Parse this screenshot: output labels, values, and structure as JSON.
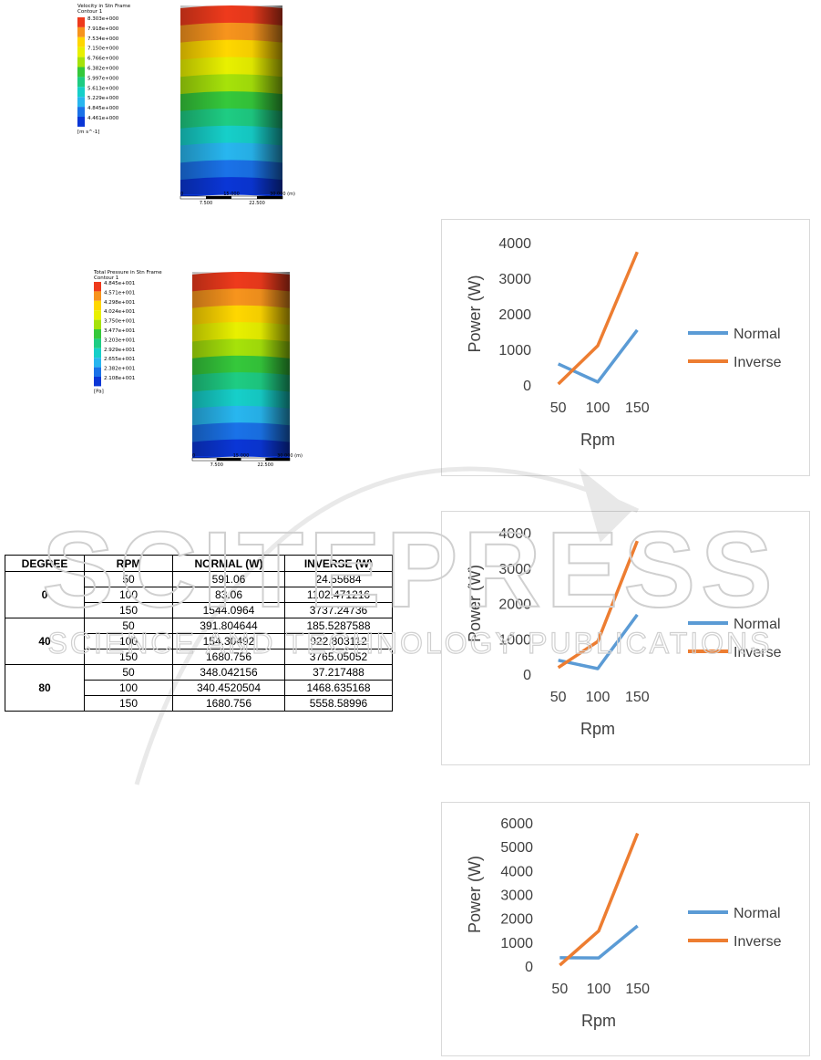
{
  "velocity_contour": {
    "title": "Velocity in Stn Frame",
    "subtitle": "Contour 1",
    "levels": [
      "8.303e+000",
      "7.918e+000",
      "7.534e+000",
      "7.150e+000",
      "6.766e+000",
      "6.382e+000",
      "5.997e+000",
      "5.613e+000",
      "5.229e+000",
      "4.845e+000",
      "4.461e+000"
    ],
    "unit": "[m s^-1]",
    "scale_ticks": [
      "0",
      "15.000",
      "30.000 (m)"
    ],
    "scale_sub_ticks": [
      "7.500",
      "22.500"
    ],
    "colors": [
      "#ee3a1c",
      "#f7941d",
      "#ffd700",
      "#e8f000",
      "#a6e20a",
      "#35c83b",
      "#1ecc83",
      "#16cfc9",
      "#28b6ef",
      "#1a72e8",
      "#0a36d6"
    ]
  },
  "pressure_contour": {
    "title": "Total Pressure in Stn Frame",
    "subtitle": "Contour 1",
    "levels": [
      "4.845e+001",
      "4.571e+001",
      "4.298e+001",
      "4.024e+001",
      "3.750e+001",
      "3.477e+001",
      "3.203e+001",
      "2.929e+001",
      "2.655e+001",
      "2.382e+001",
      "2.108e+001"
    ],
    "unit": "[Pa]",
    "scale_ticks": [
      "0",
      "15.000",
      "30.000 (m)"
    ],
    "scale_sub_ticks": [
      "7.500",
      "22.500"
    ],
    "colors": [
      "#ee3a1c",
      "#f7941d",
      "#ffd700",
      "#e8f000",
      "#a6e20a",
      "#35c83b",
      "#1ecc83",
      "#16cfc9",
      "#28b6ef",
      "#1a72e8",
      "#0a36d6"
    ]
  },
  "table": {
    "headers": [
      "DEGREE",
      "RPM",
      "NORMAL (W)",
      "INVERSE (W)"
    ],
    "groups": [
      {
        "degree": "0",
        "rows": [
          [
            "50",
            "591.06",
            "24.55684"
          ],
          [
            "100",
            "83.06",
            "1102.471216"
          ],
          [
            "150",
            "1544.0964",
            "3737.24736"
          ]
        ]
      },
      {
        "degree": "40",
        "rows": [
          [
            "50",
            "391.804644",
            "185.5287588"
          ],
          [
            "100",
            "154.30492",
            "922.803112"
          ],
          [
            "150",
            "1680.756",
            "3765.05052"
          ]
        ]
      },
      {
        "degree": "80",
        "rows": [
          [
            "50",
            "348.042156",
            "37.217488"
          ],
          [
            "100",
            "340.4520504",
            "1468.635168"
          ],
          [
            "150",
            "1680.756",
            "5558.58996"
          ]
        ]
      }
    ]
  },
  "chart_data": [
    {
      "type": "line",
      "categories": [
        "50",
        "100",
        "150"
      ],
      "series": [
        {
          "name": "Normal",
          "values": [
            591.06,
            83.06,
            1544.0964
          ],
          "color": "#5b9bd5"
        },
        {
          "name": "Inverse",
          "values": [
            24.55684,
            1102.471216,
            3737.24736
          ],
          "color": "#ed7d31"
        }
      ],
      "xlabel": "Rpm",
      "ylabel": "Power (W)",
      "ylim": [
        0,
        4000
      ],
      "yticks": [
        "0",
        "1000",
        "2000",
        "3000",
        "4000"
      ],
      "legend": "right",
      "grid": false
    },
    {
      "type": "line",
      "categories": [
        "50",
        "100",
        "150"
      ],
      "series": [
        {
          "name": "Normal",
          "values": [
            391.804644,
            154.30492,
            1680.756
          ],
          "color": "#5b9bd5"
        },
        {
          "name": "Inverse",
          "values": [
            185.5287588,
            922.803112,
            3765.05052
          ],
          "color": "#ed7d31"
        }
      ],
      "xlabel": "Rpm",
      "ylabel": "Power (W)",
      "ylim": [
        0,
        4000
      ],
      "yticks": [
        "0",
        "1000",
        "2000",
        "3000",
        "4000"
      ],
      "legend": "right",
      "grid": false
    },
    {
      "type": "line",
      "categories": [
        "50",
        "100",
        "150"
      ],
      "series": [
        {
          "name": "Normal",
          "values": [
            348.042156,
            340.4520504,
            1680.756
          ],
          "color": "#5b9bd5"
        },
        {
          "name": "Inverse",
          "values": [
            37.217488,
            1468.635168,
            5558.58996
          ],
          "color": "#ed7d31"
        }
      ],
      "xlabel": "Rpm",
      "ylabel": "Power (W)",
      "ylim": [
        0,
        6000
      ],
      "yticks": [
        "0",
        "1000",
        "2000",
        "3000",
        "4000",
        "5000",
        "6000"
      ],
      "legend": "right",
      "grid": false
    }
  ],
  "watermark": {
    "line1": "SCITEPRESS",
    "line2": "SCIENCE AND TECHNOLOGY PUBLICATIONS"
  }
}
